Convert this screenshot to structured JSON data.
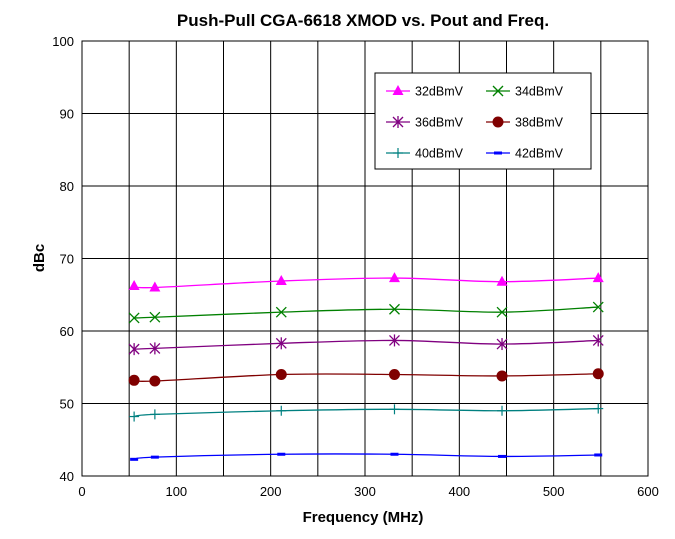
{
  "chart_data": {
    "type": "line",
    "title": "Push-Pull CGA-6618 XMOD vs. Pout and Freq.",
    "xlabel": "Frequency (MHz)",
    "ylabel": "dBc",
    "xlim": [
      0,
      600
    ],
    "ylim": [
      40,
      100
    ],
    "xticks": [
      0,
      100,
      200,
      300,
      400,
      500,
      600
    ],
    "yticks": [
      40,
      50,
      60,
      70,
      80,
      90,
      100
    ],
    "grid": true,
    "legend_position": "top-right",
    "x": [
      55.25,
      77.25,
      211.25,
      331.25,
      445.25,
      547.25
    ],
    "series": [
      {
        "name": "32dBmV",
        "color": "#ff00ff",
        "marker": "triangle",
        "values": [
          66.2,
          66.0,
          66.9,
          67.3,
          66.8,
          67.3
        ]
      },
      {
        "name": "34dBmV",
        "color": "#008000",
        "marker": "x",
        "values": [
          61.8,
          61.9,
          62.6,
          63.0,
          62.6,
          63.3
        ]
      },
      {
        "name": "36dBmV",
        "color": "#800080",
        "marker": "star",
        "values": [
          57.5,
          57.6,
          58.3,
          58.7,
          58.2,
          58.7
        ]
      },
      {
        "name": "38dBmV",
        "color": "#800000",
        "marker": "circle",
        "values": [
          53.2,
          53.1,
          54.0,
          54.0,
          53.8,
          54.1
        ]
      },
      {
        "name": "40dBmV",
        "color": "#008080",
        "marker": "plus",
        "values": [
          48.2,
          48.5,
          49.0,
          49.2,
          49.0,
          49.3
        ]
      },
      {
        "name": "42dBmV",
        "color": "#0000ff",
        "marker": "dash",
        "values": [
          42.3,
          42.6,
          43.0,
          43.0,
          42.7,
          42.9
        ]
      }
    ]
  }
}
